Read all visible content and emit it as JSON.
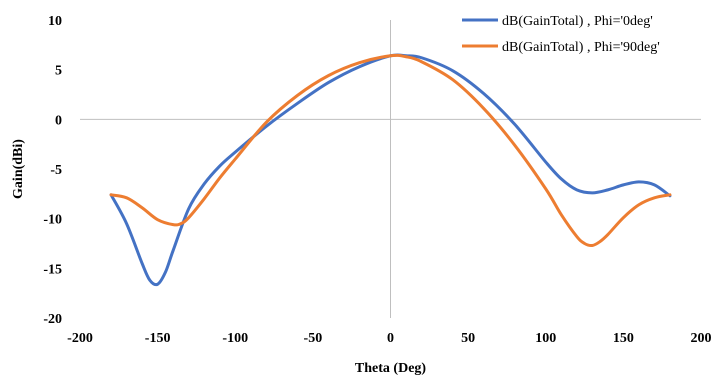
{
  "chart_data": {
    "type": "line",
    "title": "",
    "xlabel": "Theta (Deg)",
    "ylabel": "Gain(dBi)",
    "xlim": [
      -200,
      200
    ],
    "ylim": [
      -20,
      10
    ],
    "xticks": [
      -200,
      -150,
      -100,
      -50,
      0,
      50,
      100,
      150,
      200
    ],
    "yticks": [
      -20,
      -15,
      -10,
      -5,
      0,
      5,
      10
    ],
    "grid": false,
    "legend_position": "top-right",
    "series": [
      {
        "name": "dB(GainTotal) , Phi='0deg'",
        "color": "#4472C4",
        "x": [
          -180,
          -170,
          -160,
          -155,
          -150,
          -145,
          -140,
          -130,
          -120,
          -110,
          -100,
          -80,
          -60,
          -40,
          -20,
          0,
          10,
          20,
          40,
          60,
          80,
          100,
          110,
          120,
          130,
          140,
          150,
          160,
          170,
          180
        ],
        "y": [
          -7.6,
          -10.5,
          -14.5,
          -16.2,
          -16.6,
          -15.4,
          -13.2,
          -9.0,
          -6.5,
          -4.7,
          -3.3,
          -0.7,
          1.6,
          3.7,
          5.3,
          6.4,
          6.4,
          6.2,
          4.9,
          2.6,
          -0.5,
          -4.3,
          -6.0,
          -7.1,
          -7.4,
          -7.1,
          -6.6,
          -6.3,
          -6.6,
          -7.7
        ]
      },
      {
        "name": "dB(GainTotal) , Phi='90deg'",
        "color": "#ED7D31",
        "x": [
          -180,
          -170,
          -160,
          -150,
          -140,
          -135,
          -130,
          -120,
          -110,
          -100,
          -80,
          -60,
          -40,
          -20,
          0,
          10,
          20,
          40,
          60,
          80,
          100,
          110,
          120,
          125,
          130,
          135,
          140,
          150,
          160,
          170,
          180
        ],
        "y": [
          -7.6,
          -7.9,
          -8.9,
          -10.1,
          -10.6,
          -10.5,
          -9.9,
          -8.0,
          -5.9,
          -4.0,
          -0.3,
          2.4,
          4.4,
          5.7,
          6.4,
          6.3,
          5.8,
          4.0,
          1.1,
          -2.6,
          -7.0,
          -9.6,
          -11.8,
          -12.5,
          -12.7,
          -12.3,
          -11.6,
          -9.9,
          -8.6,
          -7.9,
          -7.6
        ]
      }
    ]
  }
}
